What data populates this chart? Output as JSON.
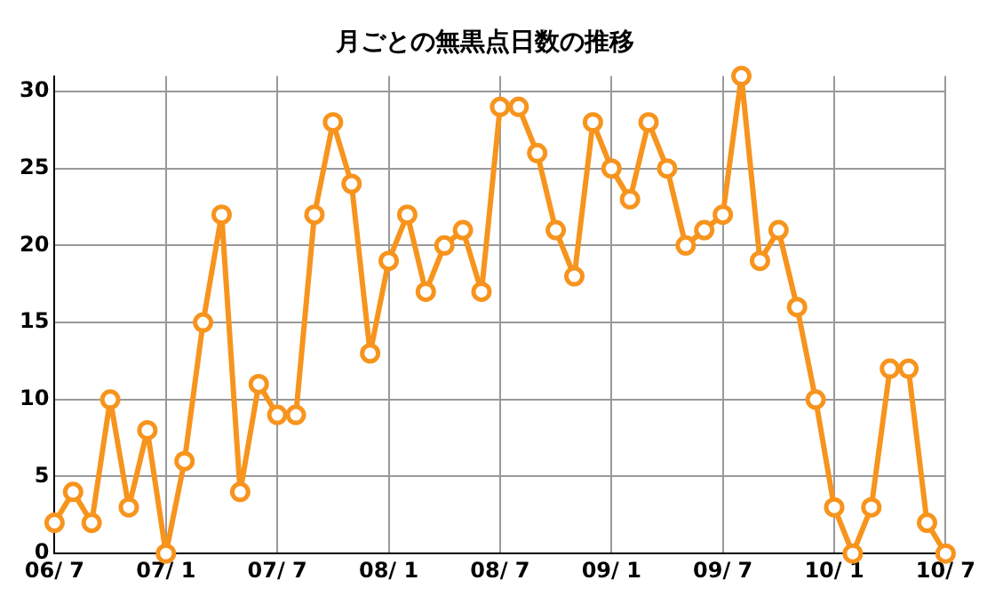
{
  "chart_data": {
    "type": "line",
    "title": "月ごとの無黒点日数の推移",
    "categories": [
      "06/ 7",
      null,
      null,
      null,
      null,
      null,
      "07/ 1",
      null,
      null,
      null,
      null,
      null,
      "07/ 7",
      null,
      null,
      null,
      null,
      null,
      "08/ 1",
      null,
      null,
      null,
      null,
      null,
      "08/ 7",
      null,
      null,
      null,
      null,
      null,
      "09/ 1",
      null,
      null,
      null,
      null,
      null,
      "09/ 7",
      null,
      null,
      null,
      null,
      null,
      "10/ 1",
      null,
      null,
      null,
      null,
      null,
      "10/ 7"
    ],
    "series": [
      {
        "color": "#f7941d",
        "values": [
          2,
          4,
          2,
          10,
          3,
          8,
          0,
          6,
          15,
          22,
          4,
          11,
          9,
          9,
          22,
          28,
          24,
          13,
          19,
          22,
          17,
          20,
          21,
          17,
          29,
          29,
          26,
          21,
          18,
          28,
          25,
          23,
          28,
          25,
          20,
          21,
          22,
          31,
          19,
          21,
          16,
          10,
          3,
          0,
          3,
          12,
          12,
          2,
          0
        ]
      }
    ],
    "ylim": [
      0,
      31
    ],
    "yticks": [
      0,
      5,
      10,
      15,
      20,
      25,
      30
    ],
    "grid": true,
    "marker": "circle",
    "line_style": "solid",
    "legend": false
  }
}
